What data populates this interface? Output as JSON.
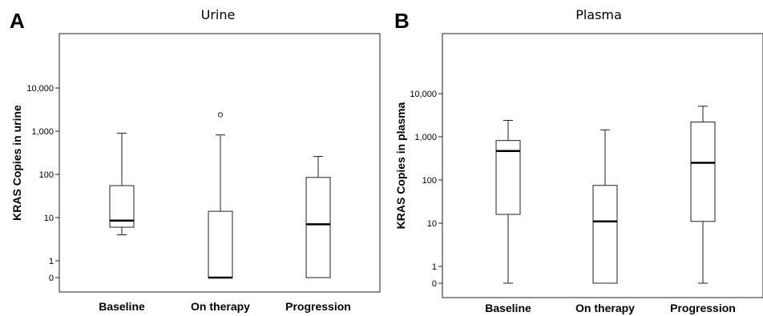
{
  "chart_data": [
    {
      "type": "box",
      "panel": "A",
      "title": "Urine",
      "ylabel": "KRAS Copies in urine",
      "xlabel": "",
      "yscale": "log1p",
      "yticks": [
        0,
        1,
        10,
        100,
        1000,
        10000
      ],
      "ytick_labels": [
        "0",
        "1",
        "10",
        "100",
        "1,000",
        "10,000"
      ],
      "ylim": [
        0,
        10000
      ],
      "grid": false,
      "categories": [
        "Baseline",
        "On therapy",
        "Progression"
      ],
      "boxes": [
        {
          "whisker_low": 4,
          "q1": 6,
          "median": 8.5,
          "q3": 55,
          "whisker_high": 900,
          "outliers": []
        },
        {
          "whisker_low": 0,
          "q1": 0,
          "median": 0,
          "q3": 14,
          "whisker_high": 820,
          "outliers": [
            2400
          ]
        },
        {
          "whisker_low": 0,
          "q1": 0,
          "median": 7,
          "q3": 85,
          "whisker_high": 260,
          "outliers": []
        }
      ]
    },
    {
      "type": "box",
      "panel": "B",
      "title": "Plasma",
      "ylabel": "KRAS Copies in plasma",
      "xlabel": "",
      "yscale": "log1p",
      "yticks": [
        0,
        1,
        10,
        100,
        1000,
        10000
      ],
      "ytick_labels": [
        "0",
        "1",
        "10",
        "100",
        "1,000",
        "10,000"
      ],
      "ylim": [
        0,
        10000
      ],
      "grid": false,
      "categories": [
        "Baseline",
        "On therapy",
        "Progression"
      ],
      "boxes": [
        {
          "whisker_low": 0,
          "q1": 16,
          "median": 470,
          "q3": 820,
          "whisker_high": 2400,
          "outliers": []
        },
        {
          "whisker_low": 0,
          "q1": 0,
          "median": 11,
          "q3": 75,
          "whisker_high": 1450,
          "outliers": []
        },
        {
          "whisker_low": 0,
          "q1": 11,
          "median": 250,
          "q3": 2200,
          "whisker_high": 5100,
          "outliers": []
        }
      ]
    }
  ]
}
